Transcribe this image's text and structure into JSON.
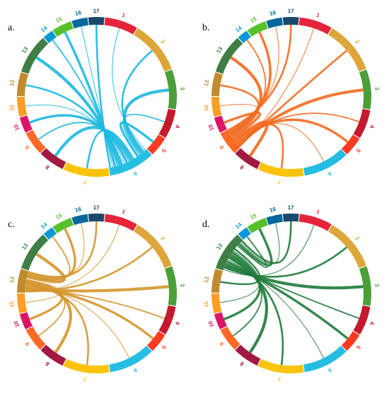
{
  "panels": [
    {
      "label": "a."
    },
    {
      "label": "b."
    },
    {
      "label": "c."
    },
    {
      "label": "d."
    }
  ],
  "sdg_labels": [
    "1",
    "2",
    "3",
    "4",
    "5",
    "6",
    "7",
    "8",
    "9",
    "10",
    "11",
    "12",
    "13",
    "14",
    "15",
    "16",
    "17"
  ]
}
